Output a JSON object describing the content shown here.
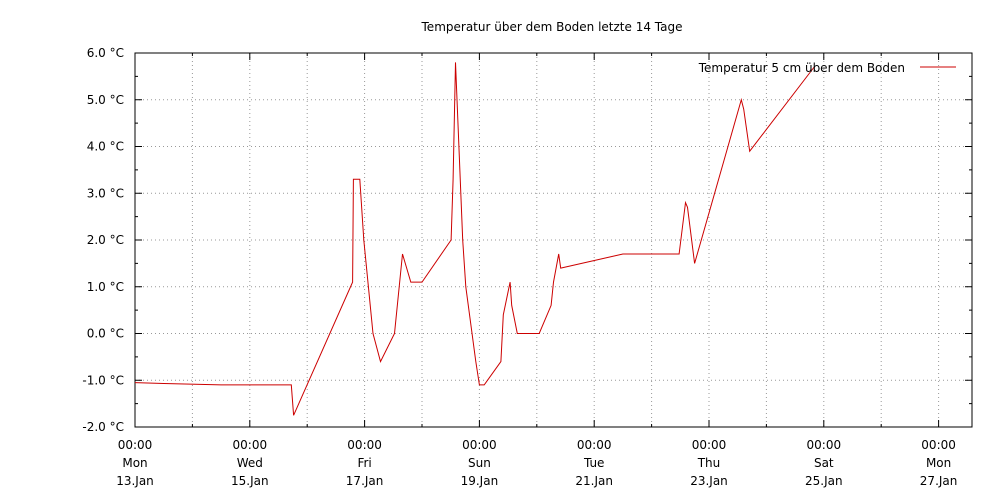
{
  "chart_data": {
    "type": "line",
    "title": "Temperatur über dem Boden letzte 14 Tage",
    "xlabel": "",
    "ylabel": "",
    "ylim": [
      -2.0,
      6.0
    ],
    "y_ticks": [
      "-2.0 °C",
      "-1.0 °C",
      "0.0 °C",
      "1.0 °C",
      "2.0 °C",
      "3.0 °C",
      "4.0 °C",
      "5.0 °C",
      "6.0 °C"
    ],
    "y_tick_values": [
      -2,
      -1,
      0,
      1,
      2,
      3,
      4,
      5,
      6
    ],
    "xlim": [
      "2013-01-13 00:00",
      "2013-01-28 00:00"
    ],
    "x_ticks": [
      {
        "day": 0,
        "time": "00:00",
        "weekday": "Mon",
        "date": "13.Jan"
      },
      {
        "day": 2,
        "time": "00:00",
        "weekday": "Wed",
        "date": "15.Jan"
      },
      {
        "day": 4,
        "time": "00:00",
        "weekday": "Fri",
        "date": "17.Jan"
      },
      {
        "day": 6,
        "time": "00:00",
        "weekday": "Sun",
        "date": "19.Jan"
      },
      {
        "day": 8,
        "time": "00:00",
        "weekday": "Tue",
        "date": "21.Jan"
      },
      {
        "day": 10,
        "time": "00:00",
        "weekday": "Thu",
        "date": "23.Jan"
      },
      {
        "day": 12,
        "time": "00:00",
        "weekday": "Sat",
        "date": "25.Jan"
      },
      {
        "day": 14,
        "time": "00:00",
        "weekday": "Mon",
        "date": "27.Jan"
      }
    ],
    "grid": true,
    "grid_style": "dotted",
    "legend_position": "top-right",
    "series": [
      {
        "name": "Temperatur 5 cm über dem Boden",
        "color": "#cc0000",
        "points": [
          {
            "x": "2013-01-13 00:00",
            "y": -1.05
          },
          {
            "x": "2013-01-13 12:00",
            "y": -1.07
          },
          {
            "x": "2013-01-14 12:00",
            "y": -1.1
          },
          {
            "x": "2013-01-15 17:20",
            "y": -1.1
          },
          {
            "x": "2013-01-15 18:20",
            "y": -1.75
          },
          {
            "x": "2013-01-16 19:00",
            "y": 1.1
          },
          {
            "x": "2013-01-16 19:20",
            "y": 3.3
          },
          {
            "x": "2013-01-16 22:00",
            "y": 3.3
          },
          {
            "x": "2013-01-16 23:40",
            "y": 2.0
          },
          {
            "x": "2013-01-17 03:30",
            "y": 0.0
          },
          {
            "x": "2013-01-17 06:40",
            "y": -0.6
          },
          {
            "x": "2013-01-17 12:30",
            "y": 0.0
          },
          {
            "x": "2013-01-17 15:50",
            "y": 1.7
          },
          {
            "x": "2013-01-17 19:20",
            "y": 1.1
          },
          {
            "x": "2013-01-18 00:00",
            "y": 1.1
          },
          {
            "x": "2013-01-18 12:10",
            "y": 2.0
          },
          {
            "x": "2013-01-18 13:00",
            "y": 3.3
          },
          {
            "x": "2013-01-18 14:00",
            "y": 5.8
          },
          {
            "x": "2013-01-18 17:00",
            "y": 2.0
          },
          {
            "x": "2013-01-18 18:20",
            "y": 1.0
          },
          {
            "x": "2013-01-18 22:30",
            "y": -0.6
          },
          {
            "x": "2013-01-19 00:00",
            "y": -1.1
          },
          {
            "x": "2013-01-19 02:00",
            "y": -1.1
          },
          {
            "x": "2013-01-19 09:00",
            "y": -0.6
          },
          {
            "x": "2013-01-19 10:00",
            "y": 0.4
          },
          {
            "x": "2013-01-19 12:50",
            "y": 1.1
          },
          {
            "x": "2013-01-19 13:30",
            "y": 0.6
          },
          {
            "x": "2013-01-19 15:50",
            "y": 0.0
          },
          {
            "x": "2013-01-20 01:00",
            "y": 0.0
          },
          {
            "x": "2013-01-20 06:00",
            "y": 0.6
          },
          {
            "x": "2013-01-20 07:00",
            "y": 1.1
          },
          {
            "x": "2013-01-20 09:10",
            "y": 1.7
          },
          {
            "x": "2013-01-20 10:00",
            "y": 1.4
          },
          {
            "x": "2013-01-21 12:00",
            "y": 1.7
          },
          {
            "x": "2013-01-22 11:30",
            "y": 1.7
          },
          {
            "x": "2013-01-22 14:10",
            "y": 2.8
          },
          {
            "x": "2013-01-22 15:00",
            "y": 2.7
          },
          {
            "x": "2013-01-22 18:00",
            "y": 1.5
          },
          {
            "x": "2013-01-23 13:30",
            "y": 5.0
          },
          {
            "x": "2013-01-23 14:30",
            "y": 4.8
          },
          {
            "x": "2013-01-23 17:00",
            "y": 3.9
          },
          {
            "x": "2013-01-24 20:00",
            "y": 5.7
          }
        ]
      }
    ]
  }
}
